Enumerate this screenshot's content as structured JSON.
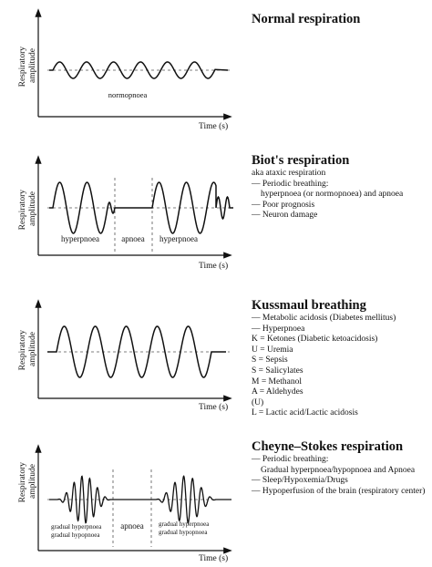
{
  "panels": [
    {
      "title": "Normal respiration",
      "ylabel": [
        "Respiratory",
        "amplitude"
      ],
      "xlabel": "Time (s)",
      "regions": [
        "normopnoea"
      ],
      "lines": []
    },
    {
      "title": "Biot's respiration",
      "ylabel": [
        "Respiratory",
        "amplitude"
      ],
      "xlabel": "Time (s)",
      "regions": [
        "hyperpnoea",
        "apnoea",
        "hyperpnoea"
      ],
      "lines": [
        "aka ataxic respiration",
        "— Periodic breathing:",
        "   hyperpnoea (or normopnoea) and apnoea",
        "— Poor prognosis",
        "— Neuron damage"
      ]
    },
    {
      "title": "Kussmaul breathing",
      "ylabel": [
        "Respiratory",
        "amplitude"
      ],
      "xlabel": "Time (s)",
      "regions": [],
      "lines": [
        "— Metabolic acidosis (Diabetes mellitus)",
        "— Hyperpnoea",
        "K = Ketones (Diabetic ketoacidosis)",
        "U = Uremia",
        "S = Sepsis",
        "S = Salicylates",
        "M = Methanol",
        "A = Aldehydes",
        "(U)",
        "L = Lactic acid/Lactic acidosis"
      ]
    },
    {
      "title": "Cheyne–Stokes respiration",
      "ylabel": [
        "Respiratory",
        "amplitude"
      ],
      "xlabel": "Time (s)",
      "regions": [
        "gradual hyperpnoea",
        "gradual hypopnoea",
        "apnoea",
        "gradual hyperpnoea",
        "gradual hypopnoea"
      ],
      "lines": [
        "— Periodic breathing:",
        "   Gradual hyperpnoea/hypopnoea and Apnoea",
        "— Sleep/Hypoxemia/Drugs",
        "— Hypoperfusion of the brain (respiratory center)"
      ]
    }
  ]
}
